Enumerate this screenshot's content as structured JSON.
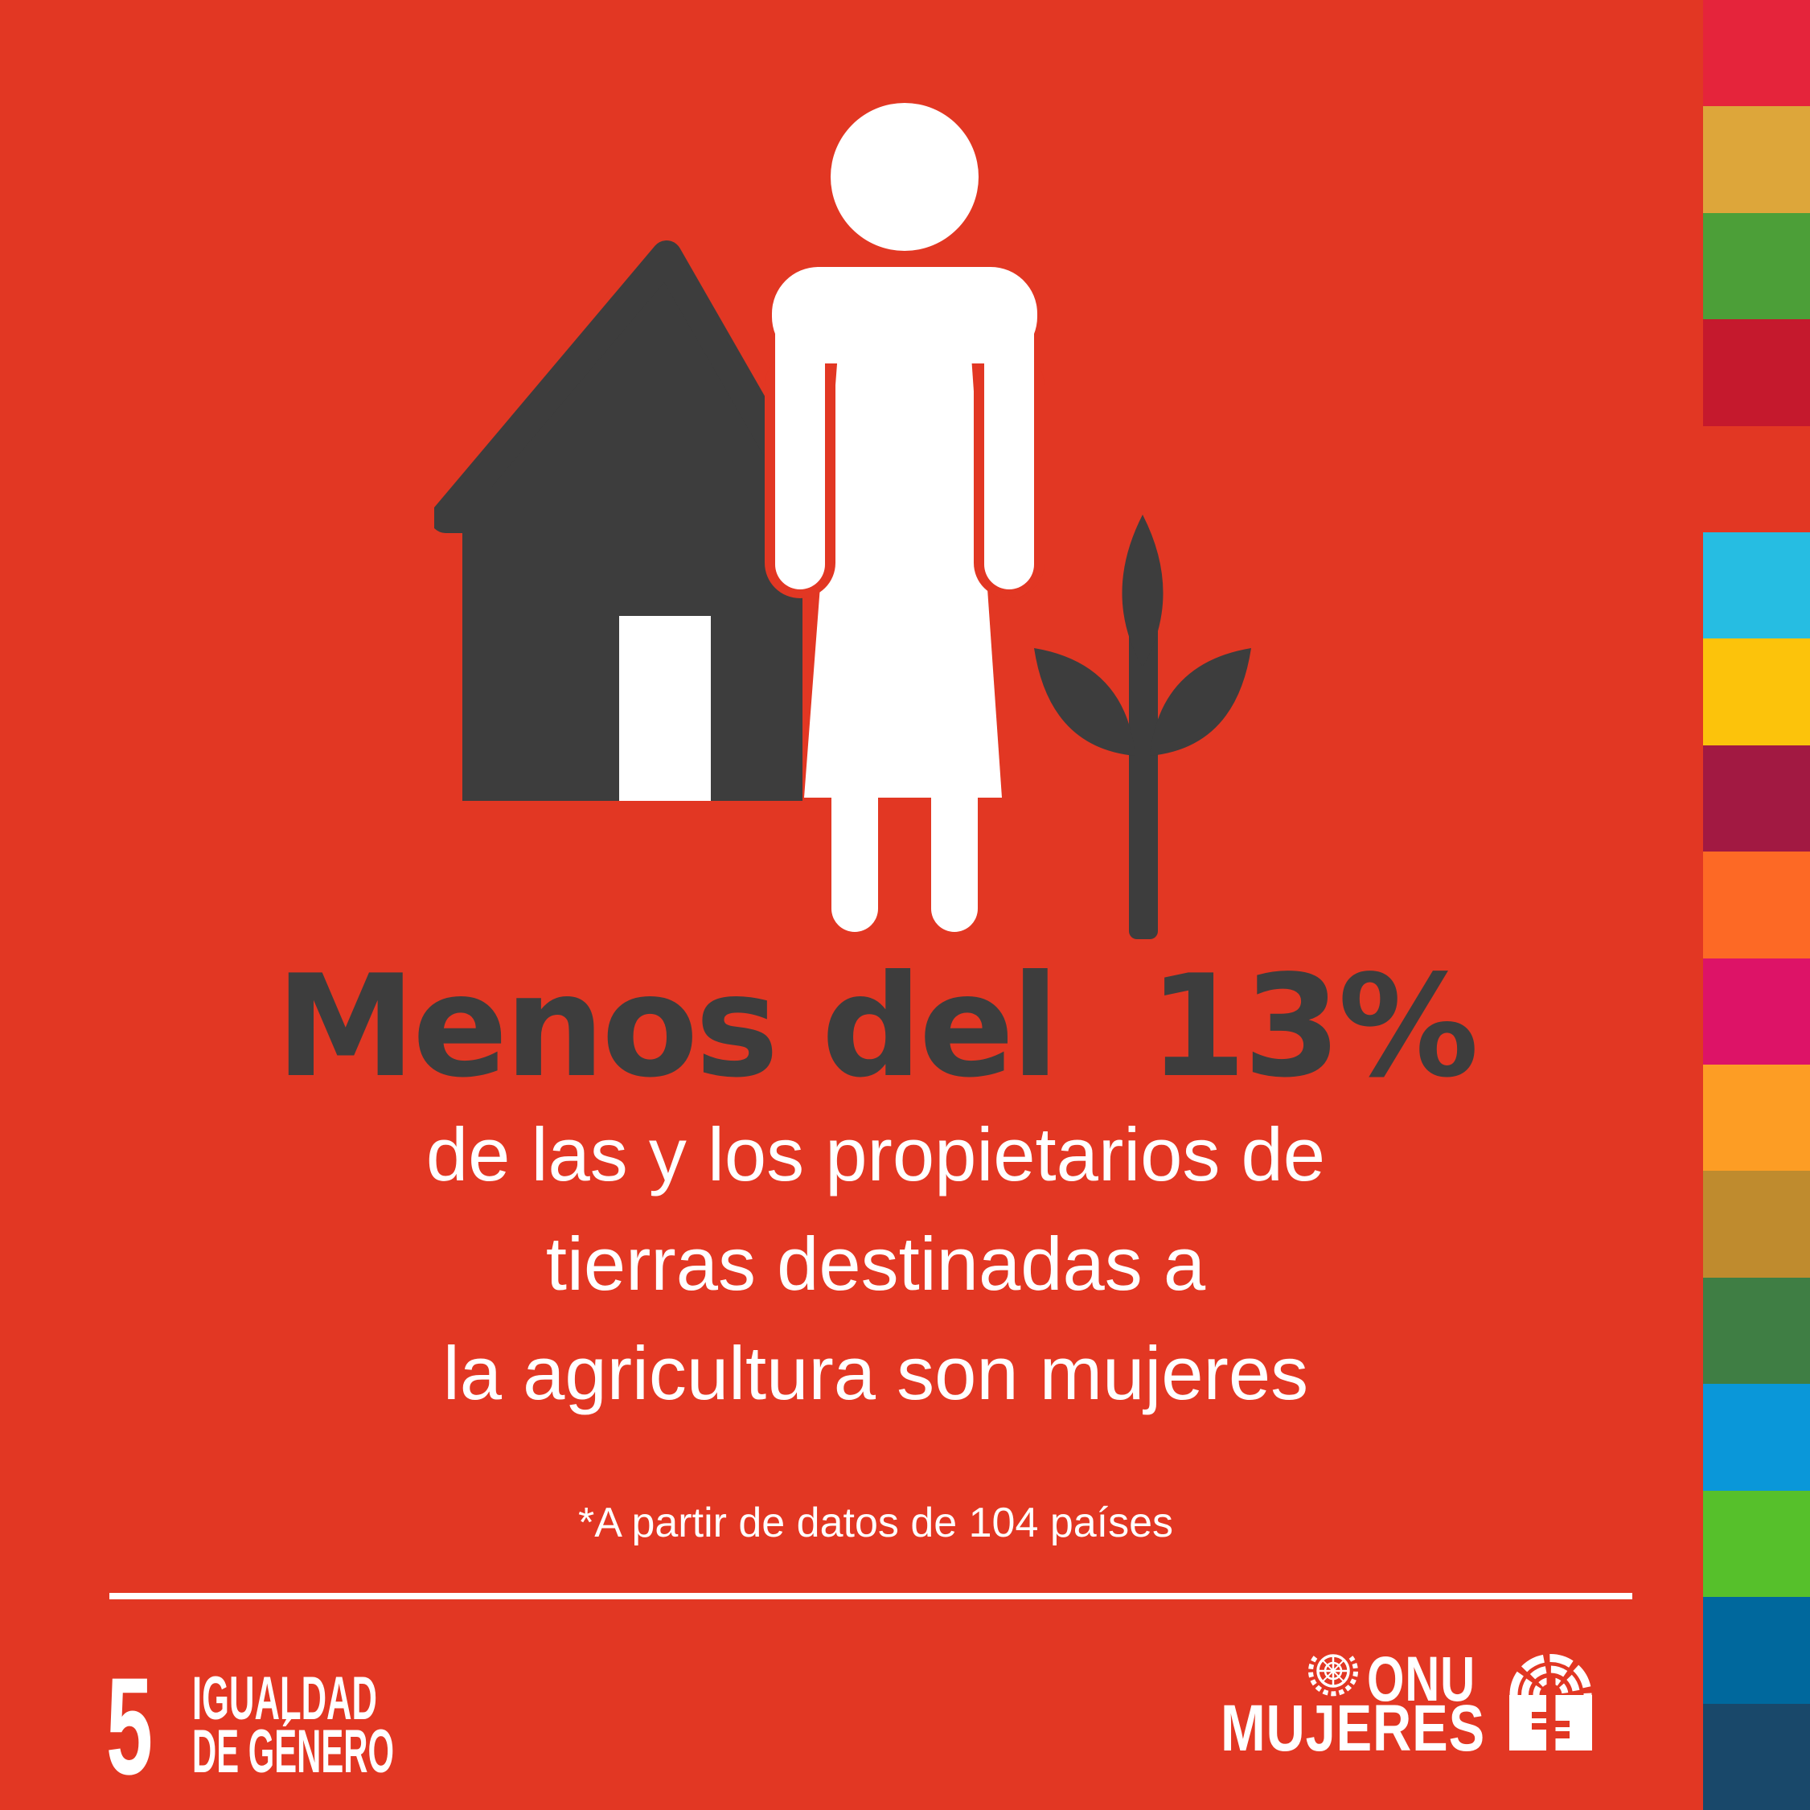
{
  "poster": {
    "background_color": "#E23723",
    "ink_color": "#3D3D3D",
    "text_white": "#FFFFFF",
    "headline": {
      "prefix": "Menos del",
      "value": "13%"
    },
    "body_lines": [
      "de las y los propietarios de",
      "tierras destinadas a",
      "la agricultura son mujeres"
    ],
    "footnote": "*A partir de datos de 104 países",
    "illustration": {
      "icons": {
        "house": "house-icon",
        "woman": "woman-icon",
        "plant": "plant-icon"
      }
    },
    "sdg_badge": {
      "number": "5",
      "title_line1": "IGUALDAD",
      "title_line2": "DE GÉNERO"
    },
    "brand": {
      "org_line1": "ONU",
      "org_line2": "MUJERES",
      "emblem_icon": "un-emblem-icon",
      "symbol_icon": "un-women-symbol-icon"
    },
    "sdg_strip": {
      "colors": [
        "#E5243B",
        "#DDA63A",
        "#4C9F38",
        "#C5192D",
        "#E23723",
        "#26BDE2",
        "#FCC30B",
        "#A21942",
        "#FD6925",
        "#DD1367",
        "#FD9D24",
        "#BF8B2E",
        "#3F7E44",
        "#0A97D9",
        "#56C02B",
        "#00689D",
        "#19486A"
      ]
    }
  }
}
